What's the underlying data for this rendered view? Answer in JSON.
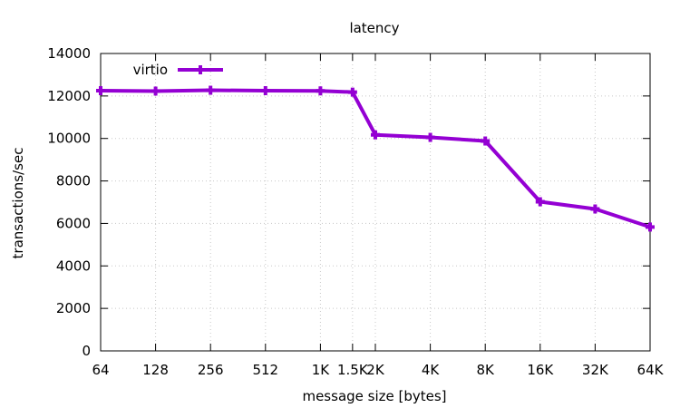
{
  "chart_data": {
    "type": "line",
    "title": "latency",
    "xlabel": "message size [bytes]",
    "ylabel": "transactions/sec",
    "x_scale": "log2",
    "categories": [
      "64",
      "128",
      "256",
      "512",
      "1K",
      "1.5K",
      "2K",
      "4K",
      "8K",
      "16K",
      "32K",
      "64K"
    ],
    "x": [
      64,
      128,
      256,
      512,
      1024,
      1536,
      2048,
      4096,
      8192,
      16384,
      32768,
      65536
    ],
    "xlim": [
      64,
      65536
    ],
    "ylim": [
      0,
      14000
    ],
    "yticks": [
      0,
      2000,
      4000,
      6000,
      8000,
      10000,
      12000,
      14000
    ],
    "grid": true,
    "legend_position": "top-left",
    "series": [
      {
        "name": "virtio",
        "color": "#9400d3",
        "marker": "plus",
        "values": [
          12250,
          12230,
          12270,
          12250,
          12240,
          12180,
          10170,
          10050,
          9880,
          7020,
          6680,
          5830
        ]
      }
    ]
  }
}
